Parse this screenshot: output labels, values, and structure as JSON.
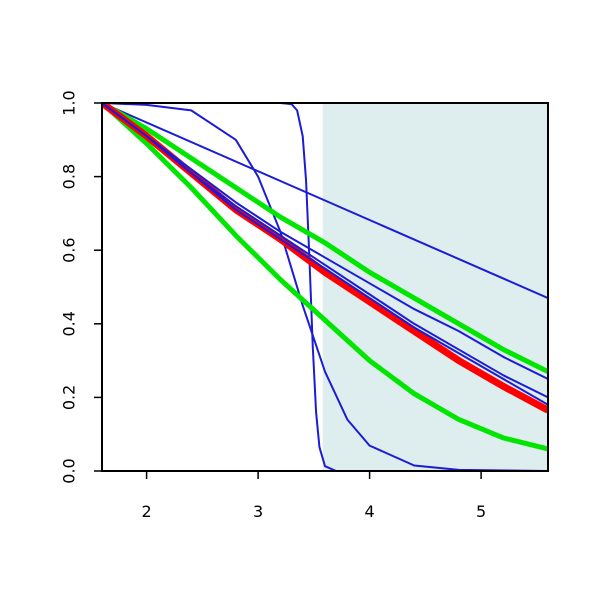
{
  "chart_data": {
    "type": "line",
    "xlim": [
      1.6,
      5.6
    ],
    "ylim": [
      0,
      1
    ],
    "xticks": [
      2,
      3,
      4,
      5
    ],
    "yticks": [
      {
        "value": 0,
        "label": "0.0"
      },
      {
        "value": 0.2,
        "label": "0.2"
      },
      {
        "value": 0.4,
        "label": "0.4"
      },
      {
        "value": 0.6,
        "label": "0.6"
      },
      {
        "value": 0.8,
        "label": "0.8"
      },
      {
        "value": 1,
        "label": "1.0"
      }
    ],
    "shade_x": [
      3.58,
      5.6
    ],
    "shade_color": "#deeded",
    "series": [
      {
        "color": "#1c1cd6",
        "width": 2,
        "x": [
          1.6,
          5.6
        ],
        "values": [
          1,
          0.47
        ]
      },
      {
        "color": "#1c1cd6",
        "width": 2,
        "x": [
          1.6,
          3.2,
          3.3,
          3.35,
          3.4,
          3.43,
          3.46,
          3.49,
          3.52,
          3.55,
          3.6,
          3.7,
          5.6
        ],
        "values": [
          1,
          1,
          0.997,
          0.98,
          0.91,
          0.79,
          0.58,
          0.34,
          0.16,
          0.065,
          0.013,
          0,
          0
        ]
      },
      {
        "color": "#1c1cd6",
        "width": 2,
        "x": [
          1.6,
          2.0,
          2.4,
          2.8,
          3.0,
          3.2,
          3.4,
          3.6,
          3.8,
          4.0,
          4.4,
          4.8,
          5.6
        ],
        "values": [
          1,
          0.995,
          0.98,
          0.9,
          0.8,
          0.65,
          0.45,
          0.27,
          0.14,
          0.069,
          0.015,
          0.003,
          0
        ]
      },
      {
        "color": "#00e600",
        "width": 5,
        "x": [
          1.6,
          2.0,
          2.4,
          2.8,
          3.2,
          3.6,
          4.0,
          4.4,
          4.8,
          5.2,
          5.6
        ],
        "values": [
          1,
          0.93,
          0.85,
          0.77,
          0.69,
          0.62,
          0.54,
          0.47,
          0.4,
          0.33,
          0.27
        ]
      },
      {
        "color": "#00e600",
        "width": 5,
        "x": [
          1.6,
          2.0,
          2.4,
          2.8,
          3.2,
          3.6,
          4.0,
          4.4,
          4.8,
          5.2,
          5.6
        ],
        "values": [
          1,
          0.89,
          0.77,
          0.64,
          0.52,
          0.41,
          0.3,
          0.21,
          0.14,
          0.09,
          0.06
        ]
      },
      {
        "color": "#ff0000",
        "width": 7,
        "x": [
          1.6,
          2.0,
          2.4,
          2.8,
          3.2,
          3.6,
          4.0,
          4.4,
          4.8,
          5.2,
          5.6
        ],
        "values": [
          1,
          0.91,
          0.81,
          0.71,
          0.63,
          0.54,
          0.46,
          0.38,
          0.3,
          0.23,
          0.165
        ]
      },
      {
        "color": "#1c1cd6",
        "width": 2,
        "x": [
          1.6,
          2.0,
          2.4,
          2.8,
          3.2,
          3.6,
          4.0,
          4.4,
          4.8,
          5.2,
          5.6
        ],
        "values": [
          1,
          0.91,
          0.82,
          0.73,
          0.65,
          0.58,
          0.51,
          0.44,
          0.38,
          0.31,
          0.25
        ]
      },
      {
        "color": "#1c1cd6",
        "width": 2,
        "x": [
          1.6,
          2.0,
          2.4,
          2.8,
          3.2,
          3.6,
          4.0,
          4.4,
          4.8,
          5.2,
          5.6
        ],
        "values": [
          1,
          0.91,
          0.81,
          0.72,
          0.64,
          0.56,
          0.48,
          0.4,
          0.33,
          0.26,
          0.2
        ]
      },
      {
        "color": "#1c1cd6",
        "width": 2,
        "x": [
          1.6,
          2.0,
          2.4,
          2.8,
          3.2,
          3.6,
          4.0,
          4.4,
          4.8,
          5.2,
          5.6
        ],
        "values": [
          1,
          0.91,
          0.81,
          0.71,
          0.63,
          0.55,
          0.47,
          0.39,
          0.32,
          0.25,
          0.18
        ]
      }
    ]
  }
}
